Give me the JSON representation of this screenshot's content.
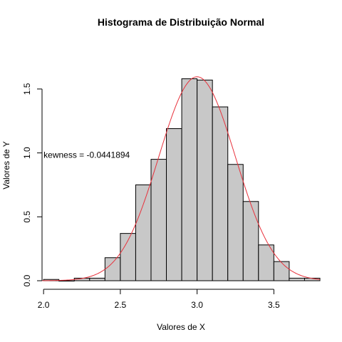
{
  "chart_data": {
    "type": "bar",
    "title": "Histograma de Distribuição Normal",
    "xlabel": "Valores de X",
    "ylabel": "Valores de Y",
    "xlim": [
      1.99,
      3.8
    ],
    "ylim": [
      0,
      1.65
    ],
    "xticks": [
      "2.0",
      "2.5",
      "3.0",
      "3.5"
    ],
    "xtick_values": [
      2.0,
      2.5,
      3.0,
      3.5
    ],
    "yticks": [
      "0.0",
      "0.5",
      "1.0",
      "1.5"
    ],
    "ytick_values": [
      0.0,
      0.5,
      1.0,
      1.5
    ],
    "bins": [
      {
        "x0": 2.0,
        "x1": 2.1,
        "value": 0.01
      },
      {
        "x0": 2.1,
        "x1": 2.2,
        "value": 0.0
      },
      {
        "x0": 2.2,
        "x1": 2.3,
        "value": 0.02
      },
      {
        "x0": 2.3,
        "x1": 2.4,
        "value": 0.02
      },
      {
        "x0": 2.4,
        "x1": 2.5,
        "value": 0.18
      },
      {
        "x0": 2.5,
        "x1": 2.6,
        "value": 0.37
      },
      {
        "x0": 2.6,
        "x1": 2.7,
        "value": 0.75
      },
      {
        "x0": 2.7,
        "x1": 2.8,
        "value": 0.95
      },
      {
        "x0": 2.8,
        "x1": 2.9,
        "value": 1.19
      },
      {
        "x0": 2.9,
        "x1": 3.0,
        "value": 1.58
      },
      {
        "x0": 3.0,
        "x1": 3.1,
        "value": 1.57
      },
      {
        "x0": 3.1,
        "x1": 3.2,
        "value": 1.36
      },
      {
        "x0": 3.2,
        "x1": 3.3,
        "value": 0.91
      },
      {
        "x0": 3.3,
        "x1": 3.4,
        "value": 0.62
      },
      {
        "x0": 3.4,
        "x1": 3.5,
        "value": 0.28
      },
      {
        "x0": 3.5,
        "x1": 3.6,
        "value": 0.15
      },
      {
        "x0": 3.6,
        "x1": 3.7,
        "value": 0.02
      },
      {
        "x0": 3.7,
        "x1": 3.8,
        "value": 0.02
      }
    ],
    "density_curve": {
      "type": "normal",
      "mean": 3.0,
      "sd": 0.25
    },
    "annotation": {
      "text": "kewness =  -0.0441894",
      "x": 2.0,
      "y": 0.98
    },
    "colors": {
      "bar_fill": "#c8c8c8",
      "bar_stroke": "#000000",
      "curve": "#e8323c"
    },
    "grid": false,
    "legend": "none"
  }
}
